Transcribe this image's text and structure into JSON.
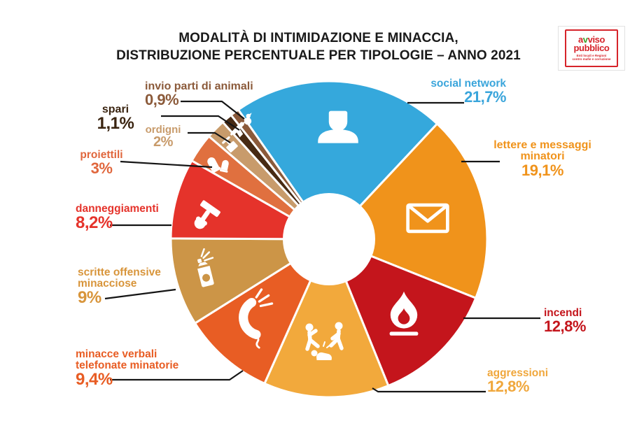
{
  "title": {
    "line1": "MODALITÀ DI INTIMIDAZIONE E MINACCIA,",
    "line2": "DISTRIBUZIONE PERCENTUALE PER TIPOLOGIE – ANNO 2021"
  },
  "logo": {
    "word1_a": "a",
    "word1_v": "v",
    "word1_rest": "viso",
    "word2": "pubblico",
    "tagline1": "Enti locali e Regioni",
    "tagline2": "contro mafie e corruzione",
    "border_color": "#d6232a",
    "accent_green": "#3ca22c"
  },
  "chart_data": {
    "type": "pie",
    "subtype": "donut",
    "unit": "%",
    "title": "MODALITÀ DI INTIMIDAZIONE E MINACCIA, DISTRIBUZIONE PERCENTUALE PER TIPOLOGIE – ANNO 2021",
    "start_angle_deg": -35,
    "legend": "none",
    "slices": [
      {
        "id": "social-network",
        "label": "social network",
        "value": 21.7,
        "pct": "21,7%",
        "color": "#35a8dc",
        "label_color": "#3aa5db",
        "icon": "person-icon"
      },
      {
        "id": "lettere",
        "label": "lettere e messaggi minatori",
        "value": 19.1,
        "pct": "19,1%",
        "color": "#f0931b",
        "label_color": "#f0931b",
        "icon": "envelope-icon"
      },
      {
        "id": "incendi",
        "label": "incendi",
        "value": 12.8,
        "pct": "12,8%",
        "color": "#c4151c",
        "label_color": "#c4151c",
        "icon": "flame-icon"
      },
      {
        "id": "aggressioni",
        "label": "aggressioni",
        "value": 12.8,
        "pct": "12,8%",
        "color": "#f2a93c",
        "label_color": "#f0a73c",
        "icon": "assault-icon"
      },
      {
        "id": "minacce-verbali",
        "label": "minacce verbali telefonate minatorie",
        "value": 9.4,
        "pct": "9,4%",
        "color": "#e85d24",
        "label_color": "#e85d24",
        "icon": "phone-icon"
      },
      {
        "id": "scritte-offensive",
        "label": "scritte offensive minacciose",
        "value": 9.0,
        "pct": "9%",
        "color": "#cc9547",
        "label_color": "#d8953b",
        "icon": "spray-can-icon"
      },
      {
        "id": "danneggiamenti",
        "label": "danneggiamenti",
        "value": 8.2,
        "pct": "8,2%",
        "color": "#e5332b",
        "label_color": "#e5332b",
        "icon": "hammer-icon"
      },
      {
        "id": "proiettili",
        "label": "proiettili",
        "value": 3.0,
        "pct": "3%",
        "color": "#e0703f",
        "label_color": "#e0663c",
        "icon": "bullets-icon"
      },
      {
        "id": "ordigni",
        "label": "ordigni",
        "value": 2.0,
        "pct": "2%",
        "color": "#c89b6b",
        "label_color": "#c89b6b",
        "icon": "detonator-icon"
      },
      {
        "id": "spari",
        "label": "spari",
        "value": 1.1,
        "pct": "1,1%",
        "color": "#472a13",
        "label_color": "#3a2410",
        "icon": "pistol-icon"
      },
      {
        "id": "invio-parti",
        "label": "invio parti di animali",
        "value": 0.9,
        "pct": "0,9%",
        "color": "#8b5a3a",
        "label_color": "#8b5a3a",
        "icon": "animal-icon"
      }
    ]
  }
}
